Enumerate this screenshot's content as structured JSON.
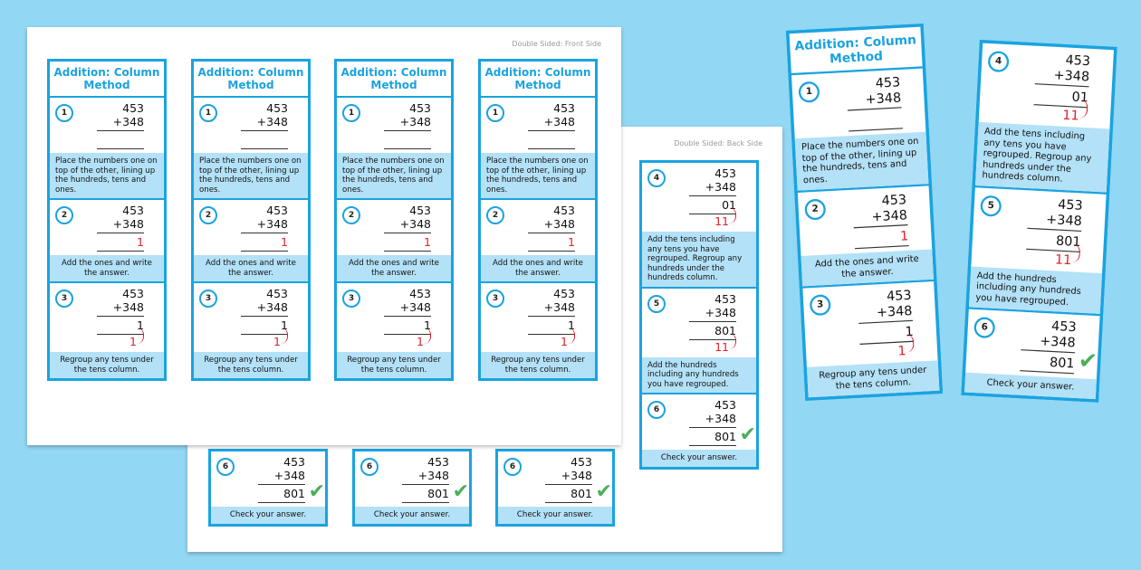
{
  "title": "Addition: Column Method",
  "front_label": "Double Sided: Front Side",
  "back_label": "Double Sided: Back Side",
  "colors": {
    "background": "#92d7f3",
    "accent": "#1aa3e0",
    "panel": "#b3e1f7",
    "carry": "#e0202a",
    "check": "#4caf5a"
  },
  "steps": [
    {
      "n": "1",
      "top": "453",
      "add": "+348",
      "answer": "",
      "carry": "",
      "answer_red": false,
      "check": false,
      "text": "Place the numbers one on top of the other, lining up the hundreds, tens and ones."
    },
    {
      "n": "2",
      "top": "453",
      "add": "+348",
      "answer": "1",
      "carry": "",
      "answer_red": true,
      "check": false,
      "text": "Add the ones and write the answer."
    },
    {
      "n": "3",
      "top": "453",
      "add": "+348",
      "answer": "1",
      "carry": "1",
      "answer_red": false,
      "check": false,
      "text": "Regroup any tens under the tens column."
    },
    {
      "n": "4",
      "top": "453",
      "add": "+348",
      "answer": "01",
      "carry": "11",
      "answer_red": false,
      "check": false,
      "text": "Add the tens including any tens you have regrouped. Regroup any hundreds under the hundreds column."
    },
    {
      "n": "5",
      "top": "453",
      "add": "+348",
      "answer": "801",
      "carry": "11",
      "answer_red": false,
      "check": false,
      "text": "Add the hundreds including any hundreds you have regrouped."
    },
    {
      "n": "6",
      "top": "453",
      "add": "+348",
      "answer": "801",
      "carry": "",
      "answer_red": false,
      "check": true,
      "check_icon": "check-mark-icon",
      "text": "Check your answer."
    }
  ]
}
